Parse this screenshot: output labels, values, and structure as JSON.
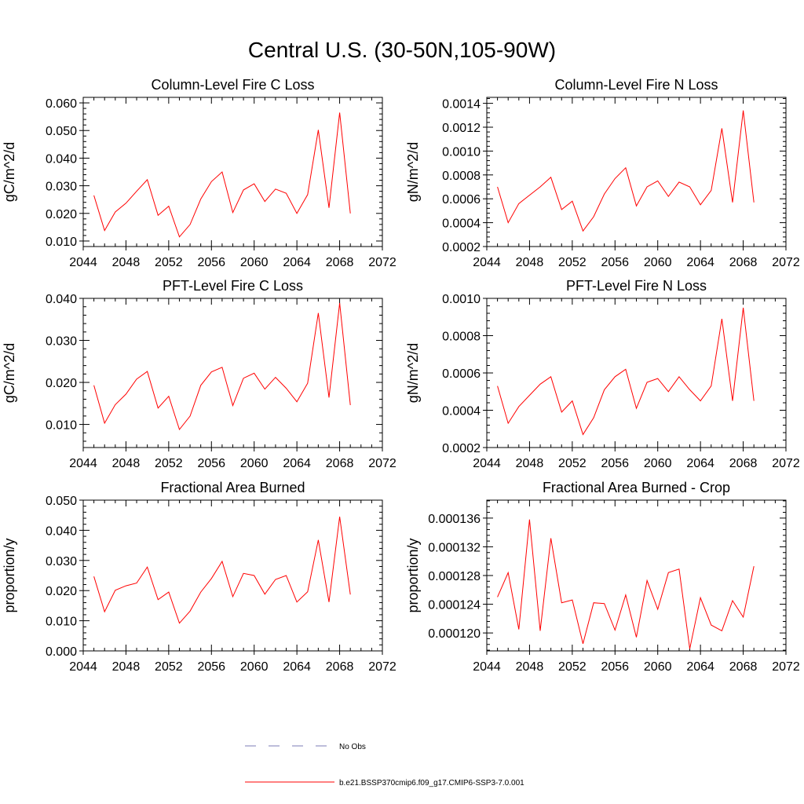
{
  "title": "Central U.S. (30-50N,105-90W)",
  "colors": {
    "series": "#ff0000",
    "obs": "#7b7bb5",
    "axis": "#000000"
  },
  "legend": {
    "obs_label": "No Obs",
    "series_label": "b.e21.BSSP370cmip6.f09_g17.CMIP6-SSP3-7.0.001"
  },
  "chart_data": [
    {
      "type": "line",
      "title": "Column-Level Fire C Loss",
      "ylabel": "gC/m^2/d",
      "xlim": [
        2044,
        2072
      ],
      "ylim": [
        0.008,
        0.062
      ],
      "xticks": [
        "2044",
        "2048",
        "2052",
        "2056",
        "2060",
        "2064",
        "2068",
        "2072"
      ],
      "yticks": [
        "0.010",
        "0.020",
        "0.030",
        "0.040",
        "0.050",
        "0.060"
      ],
      "series": [
        {
          "x": [
            2045,
            2046,
            2047,
            2048,
            2049,
            2050,
            2051,
            2052,
            2053,
            2054,
            2055,
            2056,
            2057,
            2058,
            2059,
            2060,
            2061,
            2062,
            2063,
            2064,
            2065,
            2066,
            2067,
            2068,
            2069
          ],
          "y": [
            0.0265,
            0.0138,
            0.0205,
            0.0237,
            0.028,
            0.0322,
            0.0193,
            0.0226,
            0.0115,
            0.016,
            0.0252,
            0.0315,
            0.035,
            0.0203,
            0.0285,
            0.0307,
            0.0243,
            0.0288,
            0.0273,
            0.02,
            0.0268,
            0.0502,
            0.022,
            0.0565,
            0.02
          ]
        }
      ]
    },
    {
      "type": "line",
      "title": "Column-Level Fire N Loss",
      "ylabel": "gN/m^2/d",
      "xlim": [
        2044,
        2072
      ],
      "ylim": [
        0.0002,
        0.00145
      ],
      "xticks": [
        "2044",
        "2048",
        "2052",
        "2056",
        "2060",
        "2064",
        "2068",
        "2072"
      ],
      "yticks": [
        "0.0002",
        "0.0004",
        "0.0006",
        "0.0008",
        "0.0010",
        "0.0012",
        "0.0014"
      ],
      "series": [
        {
          "x": [
            2045,
            2046,
            2047,
            2048,
            2049,
            2050,
            2051,
            2052,
            2053,
            2054,
            2055,
            2056,
            2057,
            2058,
            2059,
            2060,
            2061,
            2062,
            2063,
            2064,
            2065,
            2066,
            2067,
            2068,
            2069
          ],
          "y": [
            0.0007,
            0.0004,
            0.00056,
            0.00063,
            0.0007,
            0.00078,
            0.00051,
            0.00058,
            0.00033,
            0.00045,
            0.00064,
            0.00077,
            0.00086,
            0.00054,
            0.0007,
            0.00075,
            0.00062,
            0.00074,
            0.0007,
            0.00055,
            0.00067,
            0.00119,
            0.00057,
            0.00134,
            0.00057
          ]
        }
      ]
    },
    {
      "type": "line",
      "title": "PFT-Level Fire C Loss",
      "ylabel": "gC/m^2/d",
      "xlim": [
        2044,
        2072
      ],
      "ylim": [
        0.0045,
        0.04
      ],
      "xticks": [
        "2044",
        "2048",
        "2052",
        "2056",
        "2060",
        "2064",
        "2068",
        "2072"
      ],
      "yticks": [
        "0.010",
        "0.020",
        "0.030",
        "0.040"
      ],
      "series": [
        {
          "x": [
            2045,
            2046,
            2047,
            2048,
            2049,
            2050,
            2051,
            2052,
            2053,
            2054,
            2055,
            2056,
            2057,
            2058,
            2059,
            2060,
            2061,
            2062,
            2063,
            2064,
            2065,
            2066,
            2067,
            2068,
            2069
          ],
          "y": [
            0.0193,
            0.0103,
            0.0147,
            0.0172,
            0.0208,
            0.0226,
            0.0139,
            0.0167,
            0.0088,
            0.012,
            0.0193,
            0.0225,
            0.0236,
            0.0145,
            0.021,
            0.0222,
            0.0184,
            0.0212,
            0.0186,
            0.0154,
            0.0198,
            0.0365,
            0.0164,
            0.0389,
            0.0146
          ]
        }
      ]
    },
    {
      "type": "line",
      "title": "PFT-Level Fire N Loss",
      "ylabel": "gN/m^2/d",
      "xlim": [
        2044,
        2072
      ],
      "ylim": [
        0.0002,
        0.001
      ],
      "xticks": [
        "2044",
        "2048",
        "2052",
        "2056",
        "2060",
        "2064",
        "2068",
        "2072"
      ],
      "yticks": [
        "0.0002",
        "0.0004",
        "0.0006",
        "0.0008",
        "0.0010"
      ],
      "series": [
        {
          "x": [
            2045,
            2046,
            2047,
            2048,
            2049,
            2050,
            2051,
            2052,
            2053,
            2054,
            2055,
            2056,
            2057,
            2058,
            2059,
            2060,
            2061,
            2062,
            2063,
            2064,
            2065,
            2066,
            2067,
            2068,
            2069
          ],
          "y": [
            0.00053,
            0.00033,
            0.00042,
            0.00048,
            0.00054,
            0.00058,
            0.00039,
            0.00045,
            0.00027,
            0.00036,
            0.00051,
            0.00058,
            0.00062,
            0.00041,
            0.00055,
            0.00057,
            0.0005,
            0.00058,
            0.00051,
            0.00045,
            0.00053,
            0.00089,
            0.00045,
            0.00095,
            0.00045
          ]
        }
      ]
    },
    {
      "type": "line",
      "title": "Fractional Area Burned",
      "ylabel": "proportion/y",
      "xlim": [
        2044,
        2072
      ],
      "ylim": [
        0,
        0.05
      ],
      "xticks": [
        "2044",
        "2048",
        "2052",
        "2056",
        "2060",
        "2064",
        "2068",
        "2072"
      ],
      "yticks": [
        "0.000",
        "0.010",
        "0.020",
        "0.030",
        "0.040",
        "0.050"
      ],
      "series": [
        {
          "x": [
            2045,
            2046,
            2047,
            2048,
            2049,
            2050,
            2051,
            2052,
            2053,
            2054,
            2055,
            2056,
            2057,
            2058,
            2059,
            2060,
            2061,
            2062,
            2063,
            2064,
            2065,
            2066,
            2067,
            2068,
            2069
          ],
          "y": [
            0.0247,
            0.013,
            0.0201,
            0.0216,
            0.0225,
            0.0278,
            0.017,
            0.0195,
            0.0092,
            0.0132,
            0.0195,
            0.024,
            0.0297,
            0.018,
            0.0257,
            0.025,
            0.0188,
            0.0237,
            0.025,
            0.0162,
            0.0196,
            0.0368,
            0.0162,
            0.0445,
            0.0187
          ]
        }
      ]
    },
    {
      "type": "line",
      "title": "Fractional Area Burned - Crop",
      "ylabel": "proportion/y",
      "xlim": [
        2044,
        2072
      ],
      "ylim": [
        0.0001175,
        0.0001385
      ],
      "xticks": [
        "2044",
        "2048",
        "2052",
        "2056",
        "2060",
        "2064",
        "2068",
        "2072"
      ],
      "yticks": [
        "0.000120",
        "0.000124",
        "0.000128",
        "0.000132",
        "0.000136"
      ],
      "series": [
        {
          "x": [
            2045,
            2046,
            2047,
            2048,
            2049,
            2050,
            2051,
            2052,
            2053,
            2054,
            2055,
            2056,
            2057,
            2058,
            2059,
            2060,
            2061,
            2062,
            2063,
            2064,
            2065,
            2066,
            2067,
            2068,
            2069
          ],
          "y": [
            0.000125,
            0.0001284,
            0.0001205,
            0.0001358,
            0.0001203,
            0.0001332,
            0.0001242,
            0.0001246,
            0.0001185,
            0.0001242,
            0.0001241,
            0.0001204,
            0.0001253,
            0.0001194,
            0.0001273,
            0.0001233,
            0.0001284,
            0.0001289,
            0.0001178,
            0.0001249,
            0.0001211,
            0.0001203,
            0.0001245,
            0.0001222,
            0.0001293
          ]
        }
      ]
    }
  ]
}
